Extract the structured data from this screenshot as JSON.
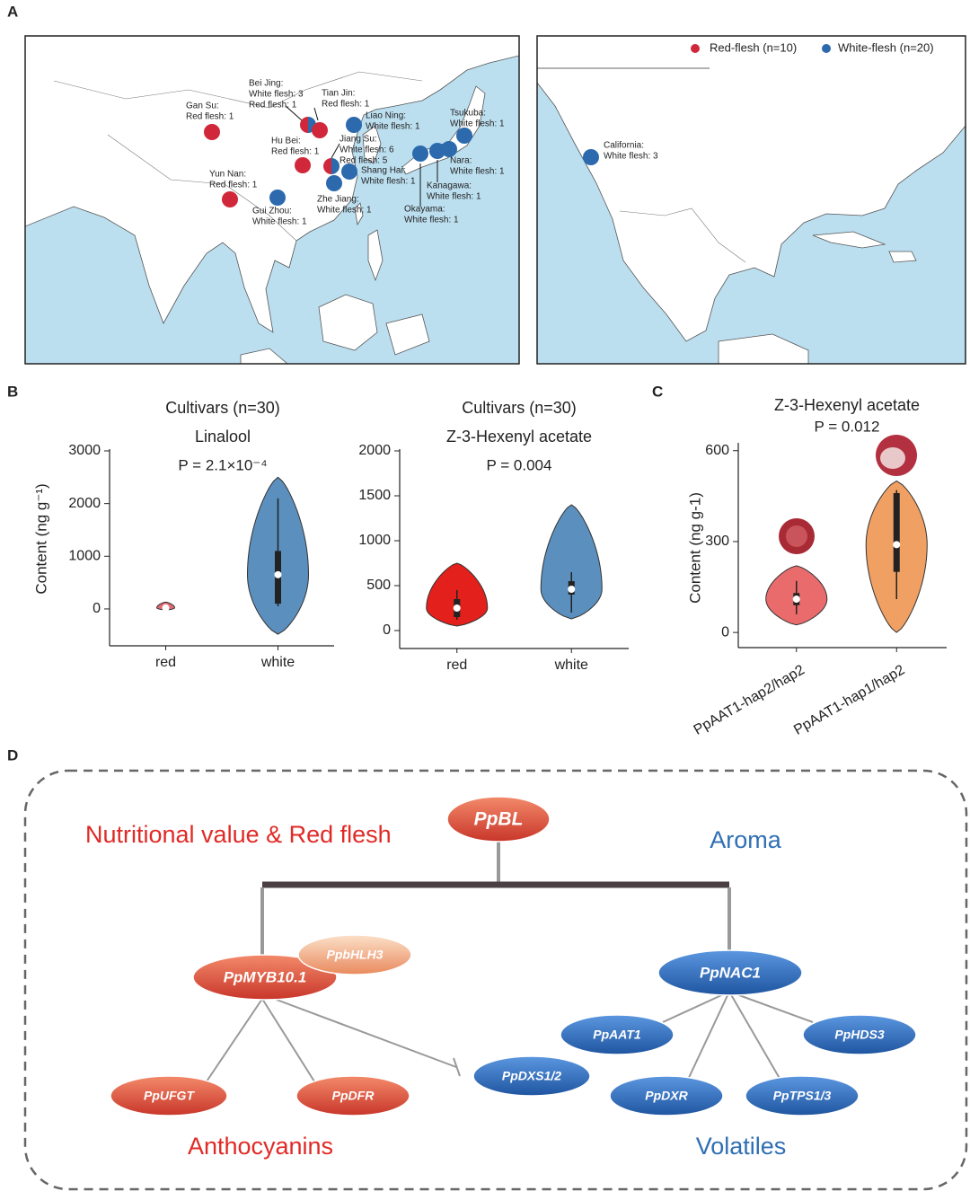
{
  "panel_labels": [
    "A",
    "B",
    "C",
    "D"
  ],
  "map": {
    "legend": [
      {
        "name": "Red-flesh (n=10)",
        "color": "#d0283a"
      },
      {
        "name": "White-flesh (n=20)",
        "color": "#2c6aad"
      }
    ],
    "points": [
      {
        "name": "Gan Su:",
        "lines": [
          "Red flesh: 1"
        ],
        "colors": [
          "#d0283a"
        ]
      },
      {
        "name": "Bei Jing:",
        "lines": [
          "White flesh: 3",
          "Red flesh: 1"
        ],
        "colors": [
          "#d0283a",
          "#2c6aad"
        ]
      },
      {
        "name": "Tian Jin:",
        "lines": [
          "Red flesh: 1"
        ],
        "colors": [
          "#d0283a"
        ]
      },
      {
        "name": "Liao Ning:",
        "lines": [
          "White flesh: 1"
        ],
        "colors": [
          "#2c6aad"
        ]
      },
      {
        "name": "Hu Bei:",
        "lines": [
          "Red flesh: 1"
        ],
        "colors": [
          "#d0283a"
        ]
      },
      {
        "name": "Jiang Su:",
        "lines": [
          "White flesh: 6",
          "Red flesh: 5"
        ],
        "colors": [
          "#d0283a",
          "#2c6aad"
        ]
      },
      {
        "name": "Shang Hai:",
        "lines": [
          "White flesh: 1"
        ],
        "colors": [
          "#2c6aad"
        ]
      },
      {
        "name": "Zhe Jiang:",
        "lines": [
          "White flesh: 1"
        ],
        "colors": [
          "#2c6aad"
        ]
      },
      {
        "name": "Yun Nan:",
        "lines": [
          "Red flesh: 1"
        ],
        "colors": [
          "#d0283a"
        ]
      },
      {
        "name": "Gui Zhou:",
        "lines": [
          "White flesh: 1"
        ],
        "colors": [
          "#2c6aad"
        ]
      },
      {
        "name": "Tsukuba:",
        "lines": [
          "White flesh: 1"
        ],
        "colors": [
          "#2c6aad"
        ]
      },
      {
        "name": "Nara:",
        "lines": [
          "White flesh: 1"
        ],
        "colors": [
          "#2c6aad"
        ]
      },
      {
        "name": "Kanagawa:",
        "lines": [
          "White flesh: 1"
        ],
        "colors": [
          "#2c6aad"
        ]
      },
      {
        "name": "Okayama:",
        "lines": [
          "White flesh: 1"
        ],
        "colors": [
          "#2c6aad"
        ]
      },
      {
        "name": "California:",
        "lines": [
          "White flesh: 3"
        ],
        "colors": [
          "#2c6aad"
        ]
      }
    ]
  },
  "chart_data": [
    {
      "type": "violin",
      "title": "Cultivars (n=30)",
      "subtitle": "Linalool",
      "annotation": "P = 2.1×10⁻⁴",
      "ylabel": "Content (ng g⁻¹)",
      "categories": [
        "red",
        "white"
      ],
      "stats": [
        {
          "min": -20,
          "whisker_low": -10,
          "q1": 0,
          "median": 20,
          "q3": 40,
          "whisker_high": 60,
          "max": 130,
          "color": "#e06a72"
        },
        {
          "min": -480,
          "whisker_low": 50,
          "q1": 100,
          "median": 650,
          "q3": 1100,
          "whisker_high": 2100,
          "max": 2500,
          "color": "#5b8fbe"
        }
      ],
      "ylim": [
        -700,
        3000
      ],
      "yticks": [
        0,
        1000,
        2000,
        3000
      ]
    },
    {
      "type": "violin",
      "title": "Cultivars (n=30)",
      "subtitle": "Z-3-Hexenyl acetate",
      "annotation": "P = 0.004",
      "categories": [
        "red",
        "white"
      ],
      "stats": [
        {
          "min": 50,
          "whisker_low": 120,
          "q1": 150,
          "median": 250,
          "q3": 350,
          "whisker_high": 450,
          "max": 750,
          "color": "#e3201c"
        },
        {
          "min": 130,
          "whisker_low": 200,
          "q1": 400,
          "median": 460,
          "q3": 550,
          "whisker_high": 650,
          "max": 1400,
          "color": "#5b8fbe"
        }
      ],
      "ylim": [
        -200,
        2000
      ],
      "yticks": [
        0,
        500,
        1000,
        1500,
        2000
      ]
    },
    {
      "type": "violin",
      "title": "Z-3-Hexenyl acetate",
      "annotation": "P = 0.012",
      "ylabel": "Content (ng g-1)",
      "categories": [
        "PpAAT1-hap2/hap2",
        "PpAAT1-hap1/hap2"
      ],
      "xlabel_rotation": -30,
      "stats": [
        {
          "min": 25,
          "whisker_low": 60,
          "q1": 90,
          "median": 110,
          "q3": 130,
          "whisker_high": 170,
          "max": 220,
          "color": "#ea6b6c"
        },
        {
          "min": 0,
          "whisker_low": 110,
          "q1": 200,
          "median": 290,
          "q3": 460,
          "whisker_high": 470,
          "max": 500,
          "color": "#f0a062"
        }
      ],
      "ylim": [
        -50,
        620
      ],
      "yticks": [
        0,
        300,
        600
      ]
    }
  ],
  "diagram": {
    "nodes": [
      {
        "label": "PpBL",
        "color": "red"
      },
      {
        "label": "PpMYB10.1",
        "color": "red"
      },
      {
        "label": "PpbHLH3",
        "color": "peach"
      },
      {
        "label": "PpNAC1",
        "color": "blue"
      },
      {
        "label": "PpAAT1",
        "color": "blue"
      },
      {
        "label": "PpHDS3",
        "color": "blue"
      },
      {
        "label": "PpDXS1/2",
        "color": "blue"
      },
      {
        "label": "PpDXR",
        "color": "blue"
      },
      {
        "label": "PpTPS1/3",
        "color": "blue"
      },
      {
        "label": "PpUFGT",
        "color": "red"
      },
      {
        "label": "PpDFR",
        "color": "red"
      }
    ],
    "labels": [
      {
        "text": "Nutritional value & Red flesh",
        "color": "#e02a26"
      },
      {
        "text": "Aroma",
        "color": "#2f6fb4"
      },
      {
        "text": "Anthocyanins",
        "color": "#e02a26"
      },
      {
        "text": "Volatiles",
        "color": "#2f6fb4"
      }
    ]
  }
}
